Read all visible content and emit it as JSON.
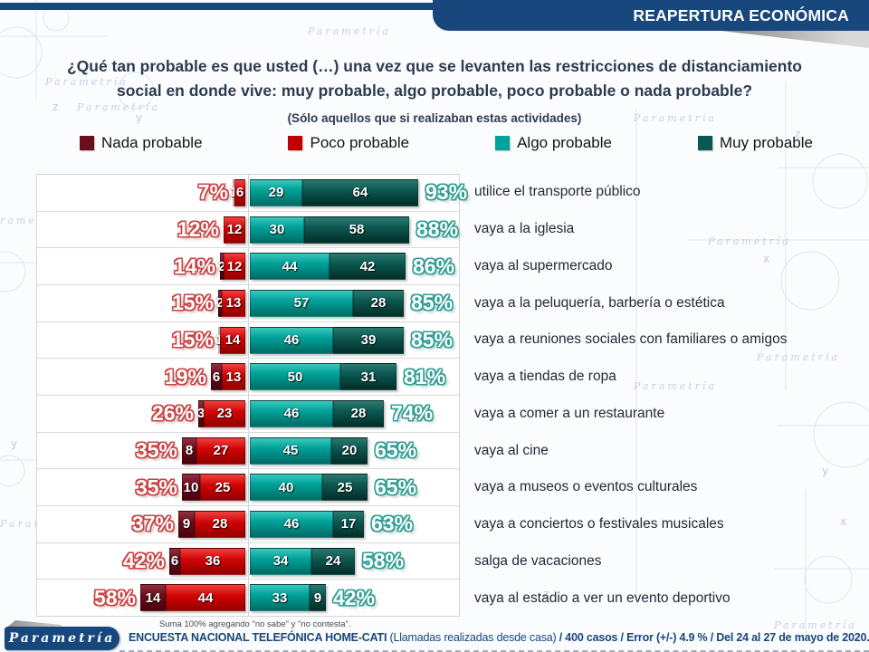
{
  "header": {
    "badge": "REAPERTURA ECONÓMICA"
  },
  "title": {
    "question": "¿Qué tan probable es que usted (…) una vez que se levanten las restricciones de distanciamiento social en donde vive: muy probable, algo probable, poco probable o nada probable?",
    "subtitle": "(Sólo aquellos que si realizaban estas actividades)"
  },
  "legend": [
    {
      "label": "Nada probable",
      "color": "#6b0e1c"
    },
    {
      "label": "Poco probable",
      "color": "#c00000"
    },
    {
      "label": "Algo probable",
      "color": "#00a299"
    },
    {
      "label": "Muy probable",
      "color": "#0b5850"
    }
  ],
  "chart_data": {
    "type": "bar",
    "variant": "diverging-stacked-horizontal",
    "series_names": [
      "Nada probable",
      "Poco probable",
      "Algo probable",
      "Muy probable"
    ],
    "axis": {
      "center": 0,
      "units": "percent",
      "gridlines": false
    },
    "rows": [
      {
        "label": "utilice el transporte público",
        "nada": 1,
        "poco": 6,
        "algo": 29,
        "muy": 64,
        "left_total": "7%",
        "right_total": "93%"
      },
      {
        "label": "vaya a la iglesia",
        "nada": 0,
        "poco": 12,
        "algo": 30,
        "muy": 58,
        "left_total": "12%",
        "right_total": "88%"
      },
      {
        "label": "vaya al supermercado",
        "nada": 2,
        "poco": 12,
        "algo": 44,
        "muy": 42,
        "left_total": "14%",
        "right_total": "86%"
      },
      {
        "label": "vaya a la peluquería, barbería o estética",
        "nada": 2,
        "poco": 13,
        "algo": 57,
        "muy": 28,
        "left_total": "15%",
        "right_total": "85%"
      },
      {
        "label": "vaya a reuniones sociales con familiares o amigos",
        "nada": 1,
        "poco": 14,
        "algo": 46,
        "muy": 39,
        "left_total": "15%",
        "right_total": "85%"
      },
      {
        "label": "vaya a tiendas de ropa",
        "nada": 6,
        "poco": 13,
        "algo": 50,
        "muy": 31,
        "left_total": "19%",
        "right_total": "81%"
      },
      {
        "label": "vaya a comer a un restaurante",
        "nada": 3,
        "poco": 23,
        "algo": 46,
        "muy": 28,
        "left_total": "26%",
        "right_total": "74%"
      },
      {
        "label": "vaya al cine",
        "nada": 8,
        "poco": 27,
        "algo": 45,
        "muy": 20,
        "left_total": "35%",
        "right_total": "65%"
      },
      {
        "label": "vaya a museos o eventos culturales",
        "nada": 10,
        "poco": 25,
        "algo": 40,
        "muy": 25,
        "left_total": "35%",
        "right_total": "65%"
      },
      {
        "label": "vaya a conciertos o festivales musicales",
        "nada": 9,
        "poco": 28,
        "algo": 46,
        "muy": 17,
        "left_total": "37%",
        "right_total": "63%"
      },
      {
        "label": "salga de vacaciones",
        "nada": 6,
        "poco": 36,
        "algo": 34,
        "muy": 24,
        "left_total": "42%",
        "right_total": "58%"
      },
      {
        "label": "vaya al estadio a ver un evento deportivo",
        "nada": 14,
        "poco": 44,
        "algo": 33,
        "muy": 9,
        "left_total": "58%",
        "right_total": "42%"
      }
    ]
  },
  "note": "Suma 100% agregando \"no sabe\" y \"no contesta\".",
  "footer": {
    "logo": "Parametría",
    "text_bold": "ENCUESTA NACIONAL TELEFÓNICA HOME-CATI",
    "text_regular": "(Llamadas realizadas desde casa)",
    "text_rest": "/ 400 casos / Error (+/-) 4.9 % / Del 24 al 27 de mayo de 2020."
  },
  "colors": {
    "navy": "#17477c",
    "title_text": "#2d3b50"
  }
}
